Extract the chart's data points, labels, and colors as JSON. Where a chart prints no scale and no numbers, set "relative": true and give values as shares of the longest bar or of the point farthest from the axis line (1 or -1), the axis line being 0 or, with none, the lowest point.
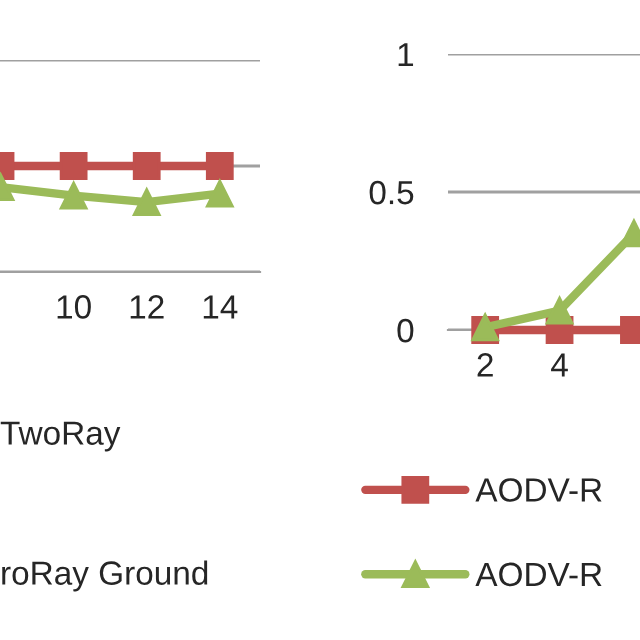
{
  "chart_data": [
    {
      "type": "line",
      "relative": true,
      "categories": [
        null,
        "10",
        "12",
        "14"
      ],
      "grid": "y",
      "line_style": "solid",
      "tick_labels": "x",
      "series": [
        {
          "color": "#c0504d",
          "marker": "square",
          "values": [
            1,
            1,
            1,
            1
          ]
        },
        {
          "color": "#9bbb59",
          "marker": "triangle",
          "values": [
            0.8,
            0.72,
            0.66,
            0.74
          ]
        }
      ],
      "annotations": [
        "TwoRay",
        "roRay Ground"
      ]
    },
    {
      "type": "line",
      "categories": [
        "2",
        "4",
        null
      ],
      "ylim": [
        0,
        1
      ],
      "yticks": [
        0,
        0.5,
        1
      ],
      "grid": "y",
      "legend": "bottom",
      "line_style": "solid",
      "series": [
        {
          "name": "AODV-R",
          "color": "#c0504d",
          "marker": "square",
          "values": [
            0,
            0,
            0
          ]
        },
        {
          "name": "AODV-R",
          "color": "#9bbb59",
          "marker": "triangle",
          "values": [
            0.01,
            0.07,
            0.35
          ]
        }
      ]
    }
  ]
}
